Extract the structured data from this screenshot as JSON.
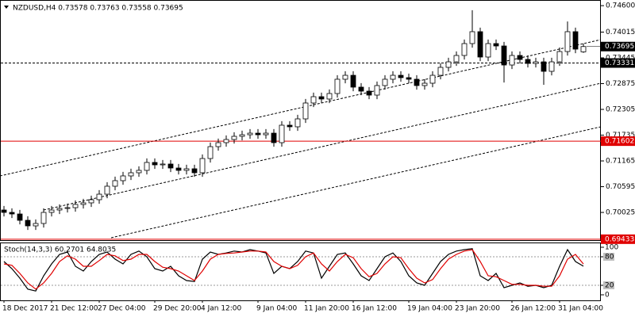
{
  "chart_data": [
    {
      "type": "candlestick",
      "title": "NZDUSD,H4 0.73578 0.73763 0.73558 0.73695",
      "open": [
        0.70079,
        0.70026,
        0.69991,
        0.69851,
        0.69728,
        0.69781,
        0.70026,
        0.70079,
        0.70114,
        0.70131,
        0.70202,
        0.70237,
        0.70307,
        0.70429,
        0.70605,
        0.70728,
        0.70833,
        0.70903,
        0.70956,
        0.71131,
        0.71078,
        0.71096,
        0.71008,
        0.70956,
        0.70991,
        0.70903,
        0.71218,
        0.71481,
        0.71569,
        0.71639,
        0.71709,
        0.71744,
        0.71779,
        0.71744,
        0.71779,
        0.71569,
        0.71955,
        0.7192,
        0.72095,
        0.72446,
        0.72586,
        0.72534,
        0.72656,
        0.72972,
        0.73059,
        0.72797,
        0.72709,
        0.72621,
        0.72832,
        0.72972,
        0.73059,
        0.73007,
        0.72972,
        0.72832,
        0.72884,
        0.73059,
        0.73235,
        0.73357,
        0.73498,
        0.73761,
        0.74024,
        0.73463,
        0.73761,
        0.73708,
        0.73287,
        0.73498,
        0.7341,
        0.73322,
        0.73357,
        0.73147,
        0.73357,
        0.73585,
        0.74024,
        0.73578
      ],
      "high": [
        0.70169,
        0.70116,
        0.70081,
        0.69941,
        0.69871,
        0.70116,
        0.70169,
        0.70204,
        0.70221,
        0.70292,
        0.70327,
        0.70397,
        0.70519,
        0.70695,
        0.70818,
        0.70923,
        0.70993,
        0.71046,
        0.71221,
        0.71221,
        0.71186,
        0.71186,
        0.71098,
        0.71081,
        0.71081,
        0.71308,
        0.71571,
        0.71659,
        0.71729,
        0.71799,
        0.71834,
        0.71869,
        0.71869,
        0.71869,
        0.71869,
        0.72045,
        0.72045,
        0.72185,
        0.72536,
        0.72676,
        0.72676,
        0.72746,
        0.73062,
        0.73149,
        0.73149,
        0.72887,
        0.72799,
        0.72922,
        0.73062,
        0.73149,
        0.73149,
        0.73097,
        0.73062,
        0.72974,
        0.73149,
        0.73325,
        0.73447,
        0.73588,
        0.73851,
        0.745,
        0.74114,
        0.73851,
        0.73851,
        0.73798,
        0.73588,
        0.73588,
        0.735,
        0.73447,
        0.73447,
        0.73447,
        0.73675,
        0.7425,
        0.74114,
        0.73763
      ],
      "low": [
        0.69936,
        0.69901,
        0.69761,
        0.69638,
        0.69638,
        0.69691,
        0.69936,
        0.69989,
        0.70024,
        0.70041,
        0.70112,
        0.70147,
        0.70217,
        0.70339,
        0.70515,
        0.70638,
        0.70743,
        0.70813,
        0.70866,
        0.70988,
        0.70988,
        0.70918,
        0.70866,
        0.70866,
        0.70813,
        0.70813,
        0.71128,
        0.71391,
        0.71479,
        0.71549,
        0.71619,
        0.71654,
        0.71654,
        0.71654,
        0.71479,
        0.71479,
        0.7183,
        0.7183,
        0.72005,
        0.72356,
        0.72444,
        0.72444,
        0.72566,
        0.72882,
        0.72707,
        0.72619,
        0.72531,
        0.72531,
        0.72742,
        0.72882,
        0.72917,
        0.72882,
        0.72742,
        0.72742,
        0.72794,
        0.72969,
        0.73145,
        0.73267,
        0.73408,
        0.73671,
        0.73373,
        0.73373,
        0.73618,
        0.729,
        0.73197,
        0.7332,
        0.73232,
        0.73232,
        0.7285,
        0.73057,
        0.73267,
        0.73495,
        0.73548,
        0.73558
      ],
      "close": [
        0.70026,
        0.69991,
        0.69851,
        0.69728,
        0.69781,
        0.70026,
        0.70079,
        0.70114,
        0.70131,
        0.70202,
        0.70237,
        0.70307,
        0.70429,
        0.70605,
        0.70728,
        0.70833,
        0.70903,
        0.70956,
        0.71131,
        0.71078,
        0.71096,
        0.71008,
        0.70956,
        0.70991,
        0.70903,
        0.71218,
        0.71481,
        0.71569,
        0.71639,
        0.71709,
        0.71744,
        0.71779,
        0.71744,
        0.71779,
        0.71569,
        0.71955,
        0.7192,
        0.72095,
        0.72446,
        0.72586,
        0.72534,
        0.72656,
        0.72972,
        0.73059,
        0.72797,
        0.72709,
        0.72621,
        0.72832,
        0.72972,
        0.73059,
        0.73007,
        0.72972,
        0.72832,
        0.72884,
        0.73059,
        0.73235,
        0.73357,
        0.73498,
        0.73761,
        0.74024,
        0.73463,
        0.73761,
        0.73708,
        0.73287,
        0.73498,
        0.7341,
        0.73322,
        0.73357,
        0.73147,
        0.73357,
        0.73585,
        0.74024,
        0.73638,
        0.73695
      ],
      "color": "#000000",
      "ylim": [
        0.6943,
        0.7469
      ],
      "yticks": [
        {
          "value": 0.746,
          "label": "0.74600"
        },
        0.74015,
        0.73445,
        0.72875,
        0.72305,
        0.71735,
        0.71165,
        0.70595,
        0.70025
      ],
      "hlines": [
        {
          "value": 0.73331,
          "color": "#000000",
          "dashed": true
        },
        {
          "value": 0.71602,
          "color": "#e00000",
          "dashed": false
        },
        {
          "value": 0.69433,
          "color": "#e00000",
          "dashed": false
        }
      ],
      "channel_lines": [
        {
          "from": [
            -0.5,
            0.70833
          ],
          "to": [
            75.2,
            0.73848
          ]
        },
        {
          "from": [
            5,
            0.70079
          ],
          "to": [
            75.2,
            0.72884
          ]
        },
        {
          "from": [
            13.5,
            0.69465
          ],
          "to": [
            75.2,
            0.7192
          ]
        }
      ]
    },
    {
      "type": "line",
      "title": "Stoch(14,3,3) 60.2701 64.8035",
      "categories": [
        "18 Dec 2017",
        null,
        null,
        null,
        null,
        null,
        "21 Dec 12:00",
        null,
        null,
        null,
        null,
        null,
        "27 Dec 04:00",
        null,
        null,
        null,
        null,
        null,
        null,
        "29 Dec 20:00",
        null,
        null,
        null,
        null,
        null,
        "4 Jan 12:00",
        null,
        null,
        null,
        null,
        null,
        null,
        "9 Jan 04:00",
        null,
        null,
        null,
        null,
        null,
        "11 Jan 20:00",
        null,
        null,
        null,
        null,
        null,
        "16 Jan 12:00",
        null,
        null,
        null,
        null,
        null,
        null,
        "19 Jan 04:00",
        null,
        null,
        null,
        null,
        null,
        "23 Jan 20:00",
        null,
        null,
        null,
        null,
        null,
        null,
        "26 Jan 12:00",
        null,
        null,
        null,
        null,
        null,
        "31 Jan 04:00",
        null,
        null,
        null
      ],
      "series": [
        {
          "color": "#000000",
          "values": [
            70,
            55,
            35,
            12,
            8,
            40,
            65,
            85,
            90,
            60,
            50,
            70,
            85,
            90,
            75,
            65,
            85,
            92,
            80,
            55,
            50,
            60,
            40,
            30,
            28,
            75,
            90,
            85,
            88,
            92,
            90,
            95,
            92,
            88,
            45,
            60,
            55,
            70,
            92,
            88,
            35,
            60,
            85,
            88,
            65,
            40,
            30,
            55,
            80,
            88,
            70,
            40,
            25,
            20,
            45,
            70,
            85,
            92,
            95,
            97,
            40,
            30,
            45,
            15,
            20,
            25,
            18,
            20,
            15,
            20,
            60,
            95,
            70,
            60.2701
          ]
        },
        {
          "color": "#e00000",
          "values": [
            65,
            62,
            45,
            25,
            12,
            25,
            45,
            70,
            82,
            75,
            60,
            60,
            72,
            85,
            82,
            72,
            75,
            85,
            85,
            70,
            58,
            55,
            50,
            40,
            30,
            50,
            75,
            85,
            87,
            88,
            90,
            92,
            92,
            90,
            70,
            60,
            55,
            62,
            80,
            88,
            65,
            50,
            70,
            85,
            78,
            55,
            38,
            45,
            65,
            80,
            78,
            55,
            35,
            25,
            32,
            55,
            75,
            85,
            92,
            95,
            70,
            40,
            38,
            30,
            22,
            22,
            20,
            20,
            18,
            18,
            40,
            75,
            85,
            64.8035
          ]
        }
      ],
      "ylim": [
        -10,
        110
      ],
      "yticks": [
        0,
        20,
        80,
        100
      ],
      "levels": [
        20,
        80
      ]
    }
  ]
}
